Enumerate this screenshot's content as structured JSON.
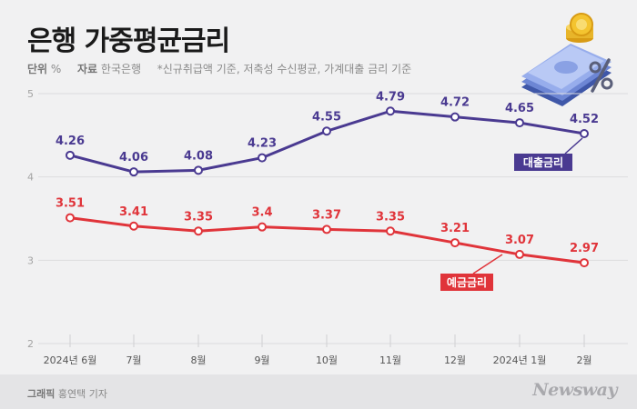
{
  "header": {
    "title": "은행 가중평균금리",
    "unit_label": "단위",
    "unit_value": "%",
    "source_label": "자료",
    "source_value": "한국은행",
    "note": "*신규취급액 기준, 저축성 수신평균, 가계대출 금리 기준"
  },
  "footer": {
    "credit_label": "그래픽",
    "credit_value": "홍연택 기자",
    "brand": "Newsway"
  },
  "colors": {
    "loan": "#4a3a91",
    "deposit": "#e0343a",
    "background": "#f1f1f2"
  },
  "chart_data": {
    "type": "line",
    "title": "은행 가중평균금리",
    "x": [
      "2024년 6월",
      "7월",
      "8월",
      "9월",
      "10월",
      "11월",
      "12월",
      "2024년 1월",
      "2월"
    ],
    "ylim": [
      2,
      5
    ],
    "yticks": [
      2,
      3,
      4,
      5
    ],
    "grid": true,
    "series": [
      {
        "name": "대출금리",
        "color": "#4a3a91",
        "values": [
          4.26,
          4.06,
          4.08,
          4.23,
          4.55,
          4.79,
          4.72,
          4.65,
          4.52
        ],
        "labels": [
          "4.26",
          "4.06",
          "4.08",
          "4.23",
          "4.55",
          "4.79",
          "4.72",
          "4.65",
          "4.52"
        ]
      },
      {
        "name": "예금금리",
        "color": "#e0343a",
        "values": [
          3.51,
          3.41,
          3.35,
          3.4,
          3.37,
          3.35,
          3.21,
          3.07,
          2.97
        ],
        "labels": [
          "3.51",
          "3.41",
          "3.35",
          "3.4",
          "3.37",
          "3.35",
          "3.21",
          "3.07",
          "2.97"
        ]
      }
    ]
  }
}
